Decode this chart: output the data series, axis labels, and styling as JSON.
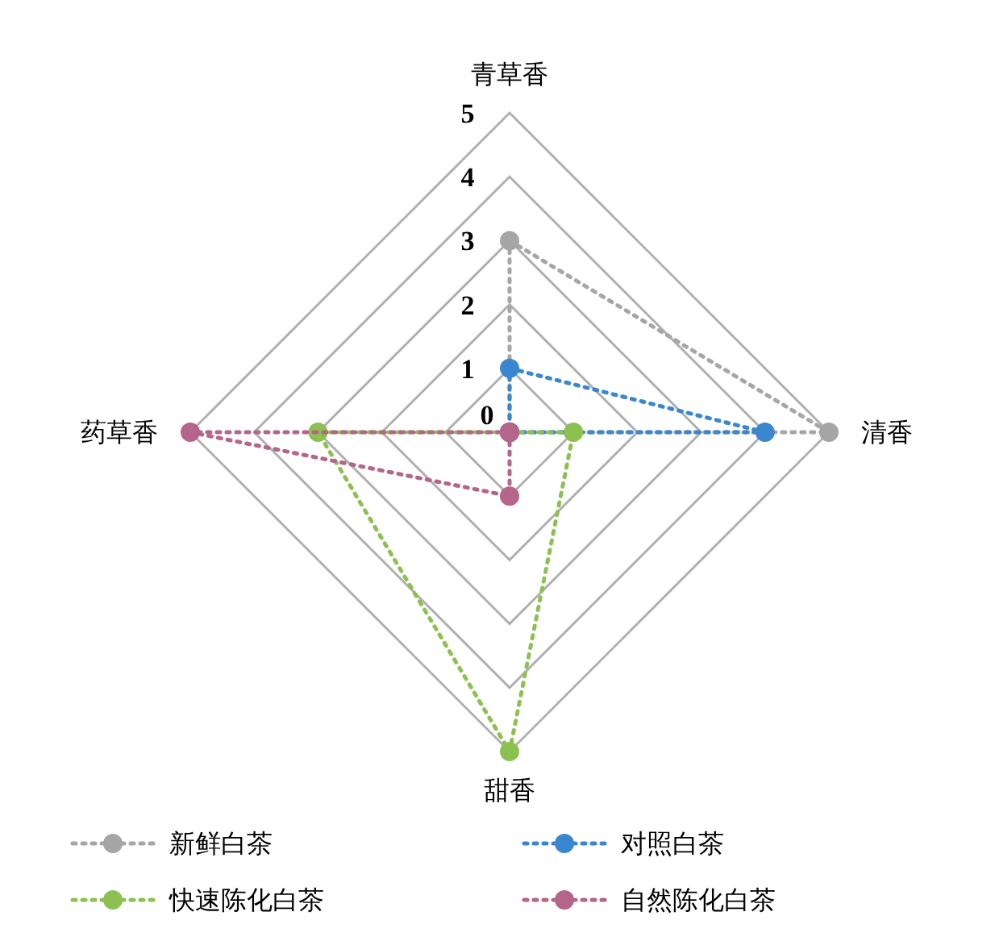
{
  "chart_data": {
    "type": "radar",
    "categories": [
      "青草香",
      "清香",
      "甜香",
      "药草香"
    ],
    "ylim": [
      0,
      5
    ],
    "yticks": [
      0,
      1,
      2,
      3,
      4,
      5
    ],
    "grid": true,
    "legend": "bottom",
    "marker": "circle",
    "line_style": "dotted",
    "series": [
      {
        "name": "新鲜白茶",
        "color": "#a6a6a6",
        "values": [
          3,
          5,
          0,
          0
        ]
      },
      {
        "name": "对照白茶",
        "color": "#3a87d0",
        "values": [
          1,
          4,
          0,
          0
        ]
      },
      {
        "name": "快速陈化白茶",
        "color": "#8cc152",
        "values": [
          0,
          1,
          5,
          3
        ]
      },
      {
        "name": "自然陈化白茶",
        "color": "#b5648a",
        "values": [
          0,
          0,
          1,
          5
        ]
      }
    ]
  }
}
